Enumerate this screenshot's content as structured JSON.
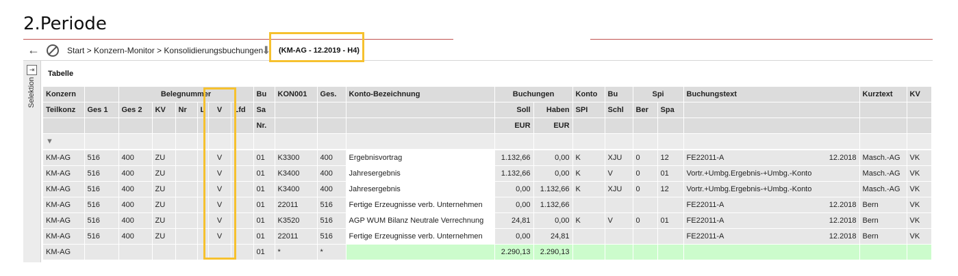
{
  "heading": "2.Periode",
  "toolbar": {
    "back_icon": "arrow-left-icon",
    "stop_icon": "no-entry-icon",
    "breadcrumb": "Start > Konzern-Monitor > Konsolidierungsbuchungen",
    "download_icon": "arrow-down-icon",
    "context": "(KM-AG - 12.2019 - H4)"
  },
  "sidepanel": {
    "label": "Selektion",
    "toggle_icon": "expand-panel-icon"
  },
  "table_title": "Tabelle",
  "columns": {
    "konzern": "Konzern",
    "teilkonz": "Teilkonz",
    "belegnummer": "Belegnummer",
    "ges1": "Ges 1",
    "ges2": "Ges 2",
    "kv": "KV",
    "nr": "Nr",
    "l": "L",
    "v": "V",
    "lfd": "Lfd",
    "bu": "Bu",
    "sa": "Sa",
    "nrlabel": "Nr.",
    "kon001": "KON001",
    "ges": "Ges.",
    "konto_bez": "Konto-Bezeichnung",
    "buchungen": "Buchungen",
    "soll": "Soll",
    "haben": "Haben",
    "eur1": "EUR",
    "eur2": "EUR",
    "konto": "Konto",
    "spi_sub": "SPI",
    "bu2": "Bu",
    "schl": "Schl",
    "spi": "Spi",
    "ber": "Ber",
    "spa": "Spa",
    "buchungstext": "Buchungstext",
    "kurztext": "Kurztext",
    "kv2": "KV"
  },
  "rows": [
    {
      "konz": "KM-AG",
      "ges1": "516",
      "ges2": "400",
      "kv": "ZU",
      "nr": "",
      "l": "",
      "v": "V",
      "lfd": "",
      "busa": "01",
      "kon": "K3300",
      "ges": "400",
      "bez": "Ergebnisvortrag",
      "soll": "1.132,66",
      "haben": "0,00",
      "konto": "K",
      "schl": "XJU",
      "ber": "0",
      "spa": "12",
      "text": "FE22011-A",
      "period": "12.2018",
      "kurz": "Masch.-AG",
      "kv2": "VK"
    },
    {
      "konz": "KM-AG",
      "ges1": "516",
      "ges2": "400",
      "kv": "ZU",
      "nr": "",
      "l": "",
      "v": "V",
      "lfd": "",
      "busa": "01",
      "kon": "K3400",
      "ges": "400",
      "bez": "Jahresergebnis",
      "soll": "1.132,66",
      "haben": "0,00",
      "konto": "K",
      "schl": "V",
      "ber": "0",
      "spa": "01",
      "text": "Vortr.+Umbg.Ergebnis-+Umbg.-Konto",
      "period": "",
      "kurz": "Masch.-AG",
      "kv2": "VK"
    },
    {
      "konz": "KM-AG",
      "ges1": "516",
      "ges2": "400",
      "kv": "ZU",
      "nr": "",
      "l": "",
      "v": "V",
      "lfd": "",
      "busa": "01",
      "kon": "K3400",
      "ges": "400",
      "bez": "Jahresergebnis",
      "soll": "0,00",
      "haben": "1.132,66",
      "konto": "K",
      "schl": "XJU",
      "ber": "0",
      "spa": "12",
      "text": "Vortr.+Umbg.Ergebnis-+Umbg.-Konto",
      "period": "",
      "kurz": "Masch.-AG",
      "kv2": "VK"
    },
    {
      "konz": "KM-AG",
      "ges1": "516",
      "ges2": "400",
      "kv": "ZU",
      "nr": "",
      "l": "",
      "v": "V",
      "lfd": "",
      "busa": "01",
      "kon": "22011",
      "ges": "516",
      "bez": "Fertige Erzeugnisse verb. Unternehmen",
      "soll": "0,00",
      "haben": "1.132,66",
      "konto": "",
      "schl": "",
      "ber": "",
      "spa": "",
      "text": "FE22011-A",
      "period": "12.2018",
      "kurz": "Bern",
      "kv2": "VK"
    },
    {
      "konz": "KM-AG",
      "ges1": "516",
      "ges2": "400",
      "kv": "ZU",
      "nr": "",
      "l": "",
      "v": "V",
      "lfd": "",
      "busa": "01",
      "kon": "K3520",
      "ges": "516",
      "bez": "AGP WUM Bilanz Neutrale Verrechnung",
      "soll": "24,81",
      "haben": "0,00",
      "konto": "K",
      "schl": "V",
      "ber": "0",
      "spa": "01",
      "text": "FE22011-A",
      "period": "12.2018",
      "kurz": "Bern",
      "kv2": "VK"
    },
    {
      "konz": "KM-AG",
      "ges1": "516",
      "ges2": "400",
      "kv": "ZU",
      "nr": "",
      "l": "",
      "v": "V",
      "lfd": "",
      "busa": "01",
      "kon": "22011",
      "ges": "516",
      "bez": "Fertige Erzeugnisse verb. Unternehmen",
      "soll": "0,00",
      "haben": "24,81",
      "konto": "",
      "schl": "",
      "ber": "",
      "spa": "",
      "text": "FE22011-A",
      "period": "12.2018",
      "kurz": "Bern",
      "kv2": "VK"
    }
  ],
  "sum_row": {
    "konz": "KM-AG",
    "busa": "01",
    "kon": "*",
    "ges": "*",
    "soll": "2.290,13",
    "haben": "2.290,13"
  },
  "colors": {
    "highlight": "#f6c12e",
    "sum_green": "#ccfccc",
    "header_gray": "#dcdcdc",
    "rule_red": "#c0504d"
  }
}
